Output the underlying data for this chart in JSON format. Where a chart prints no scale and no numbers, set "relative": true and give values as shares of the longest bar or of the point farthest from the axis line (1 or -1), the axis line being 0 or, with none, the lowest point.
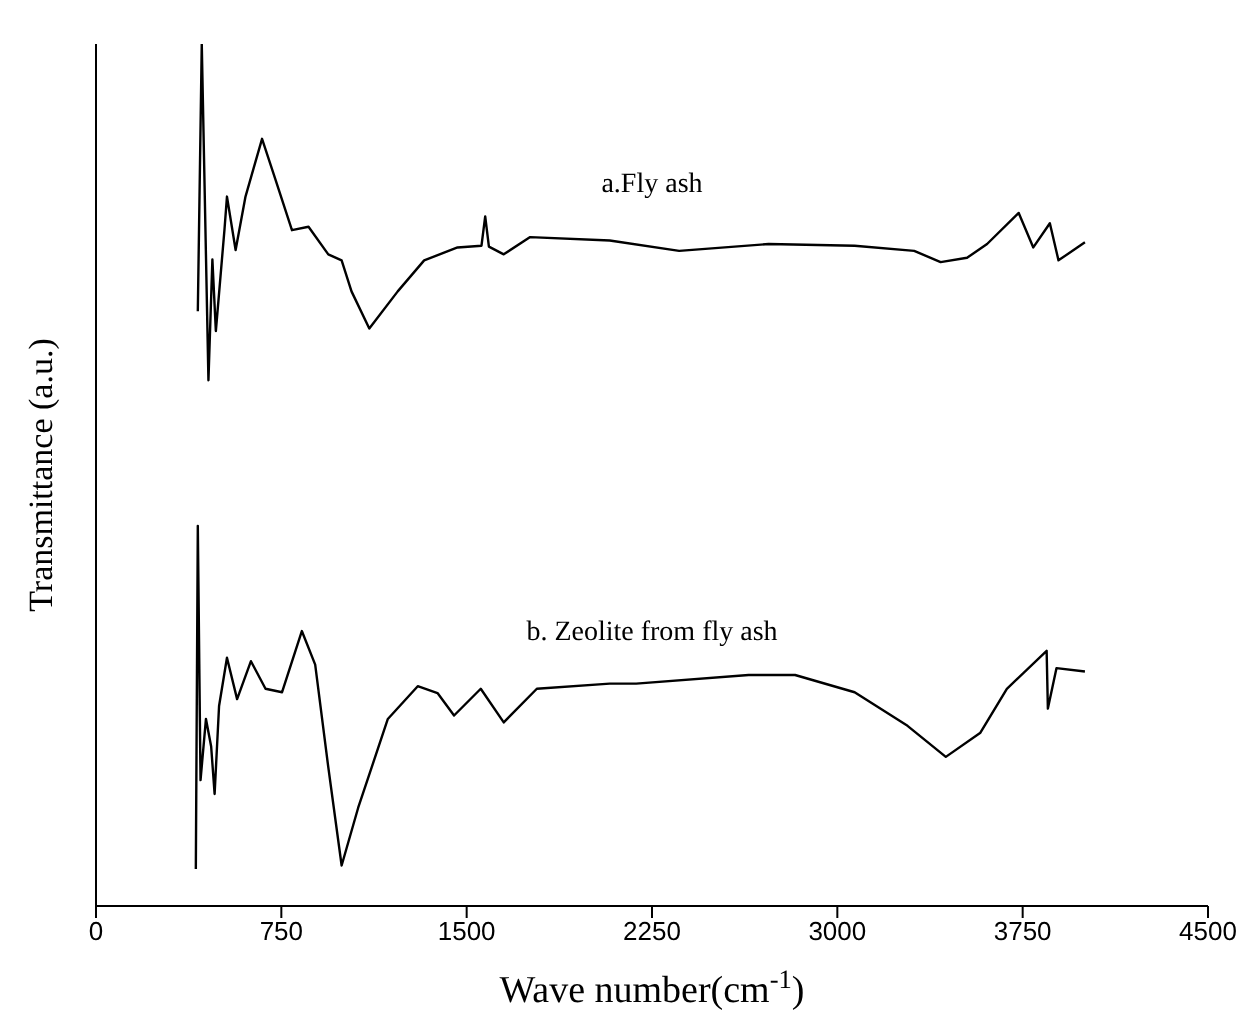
{
  "chart_data": {
    "type": "line",
    "relative": true,
    "xlabel": "Wave number(cm$^{-1}$)",
    "ylabel": "Transmittance (a.u.)",
    "xlim": [
      0,
      4500
    ],
    "xticks": [
      0,
      750,
      1500,
      2250,
      3000,
      3750,
      4500
    ],
    "marker": "none",
    "line_style": "solid",
    "series": [
      {
        "name": "a.Fly ash",
        "color": "#000000",
        "x": [
          412,
          428,
          455,
          471,
          485,
          520,
          530,
          565,
          605,
          672,
          726,
          793,
          860,
          940,
          994,
          1034,
          1106,
          1221,
          1328,
          1463,
          1560,
          1575,
          1590,
          1650,
          1757,
          2079,
          2360,
          2722,
          3070,
          3311,
          3418,
          3525,
          3606,
          3734,
          3793,
          3860,
          3895,
          4002
        ],
        "values": [
          0.69,
          1.0,
          0.61,
          0.75,
          0.667,
          0.785,
          0.823,
          0.761,
          0.823,
          0.89,
          0.843,
          0.784,
          0.788,
          0.756,
          0.749,
          0.713,
          0.67,
          0.713,
          0.749,
          0.764,
          0.766,
          0.8,
          0.765,
          0.756,
          0.776,
          0.772,
          0.76,
          0.768,
          0.766,
          0.76,
          0.747,
          0.752,
          0.768,
          0.804,
          0.764,
          0.792,
          0.749,
          0.77
        ]
      },
      {
        "name": "b. Zeolite from fly ash",
        "color": "#000000",
        "x": [
          404,
          412,
          423,
          445,
          466,
          480,
          498,
          530,
          571,
          627,
          686,
          753,
          833,
          887,
          940,
          994,
          1061,
          1181,
          1302,
          1382,
          1449,
          1557,
          1650,
          1784,
          2079,
          2186,
          2641,
          2829,
          3070,
          3284,
          3439,
          3579,
          3686,
          3847,
          3852,
          3887,
          4002
        ],
        "values": [
          0.043,
          0.441,
          0.146,
          0.217,
          0.185,
          0.13,
          0.232,
          0.288,
          0.24,
          0.284,
          0.252,
          0.248,
          0.319,
          0.28,
          0.161,
          0.047,
          0.114,
          0.217,
          0.255,
          0.247,
          0.221,
          0.252,
          0.213,
          0.252,
          0.258,
          0.258,
          0.268,
          0.268,
          0.248,
          0.209,
          0.173,
          0.201,
          0.252,
          0.296,
          0.229,
          0.276,
          0.272
        ]
      }
    ]
  }
}
